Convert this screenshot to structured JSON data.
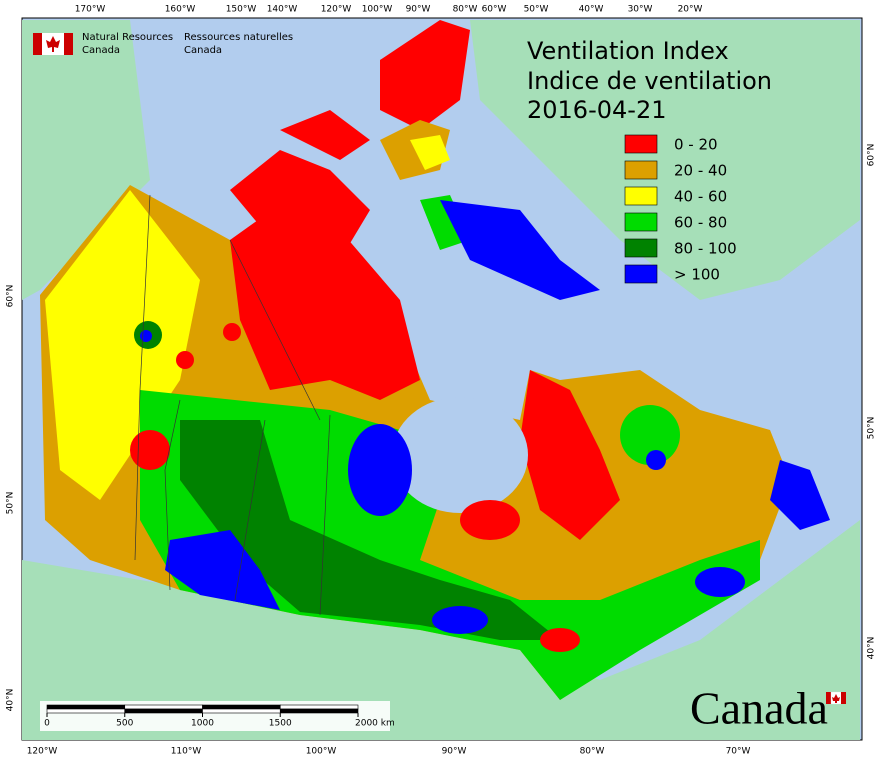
{
  "header": {
    "agency_en": [
      "Natural Resources",
      "Canada"
    ],
    "agency_fr": [
      "Ressources naturelles",
      "Canada"
    ]
  },
  "title": [
    "Ventilation Index",
    "Indice de ventilation",
    "2016-04-21"
  ],
  "legend": [
    {
      "label": "0 - 20",
      "color": "#ff0000"
    },
    {
      "label": "20 - 40",
      "color": "#dca000"
    },
    {
      "label": "40 - 60",
      "color": "#ffff00"
    },
    {
      "label": "60 - 80",
      "color": "#00dc00"
    },
    {
      "label": "80 - 100",
      "color": "#008200"
    },
    {
      "label": "> 100",
      "color": "#0000ff"
    }
  ],
  "graticule": {
    "top": [
      "170°W",
      "160°W",
      "150°W",
      "140°W",
      "120°W",
      "100°W",
      "90°W",
      "80°W",
      "60°W",
      "50°W",
      "40°W",
      "30°W",
      "20°W"
    ],
    "bottom": [
      "120°W",
      "110°W",
      "100°W",
      "90°W",
      "80°W",
      "70°W"
    ],
    "left": [
      "60°N",
      "50°N",
      "40°N"
    ],
    "right": [
      "60°N",
      "50°N",
      "40°N"
    ]
  },
  "scale_bar": {
    "ticks": [
      0,
      500,
      1000,
      1500,
      {
        "value": 2000,
        "label": "2000 km"
      }
    ]
  },
  "wordmark": "Canada"
}
